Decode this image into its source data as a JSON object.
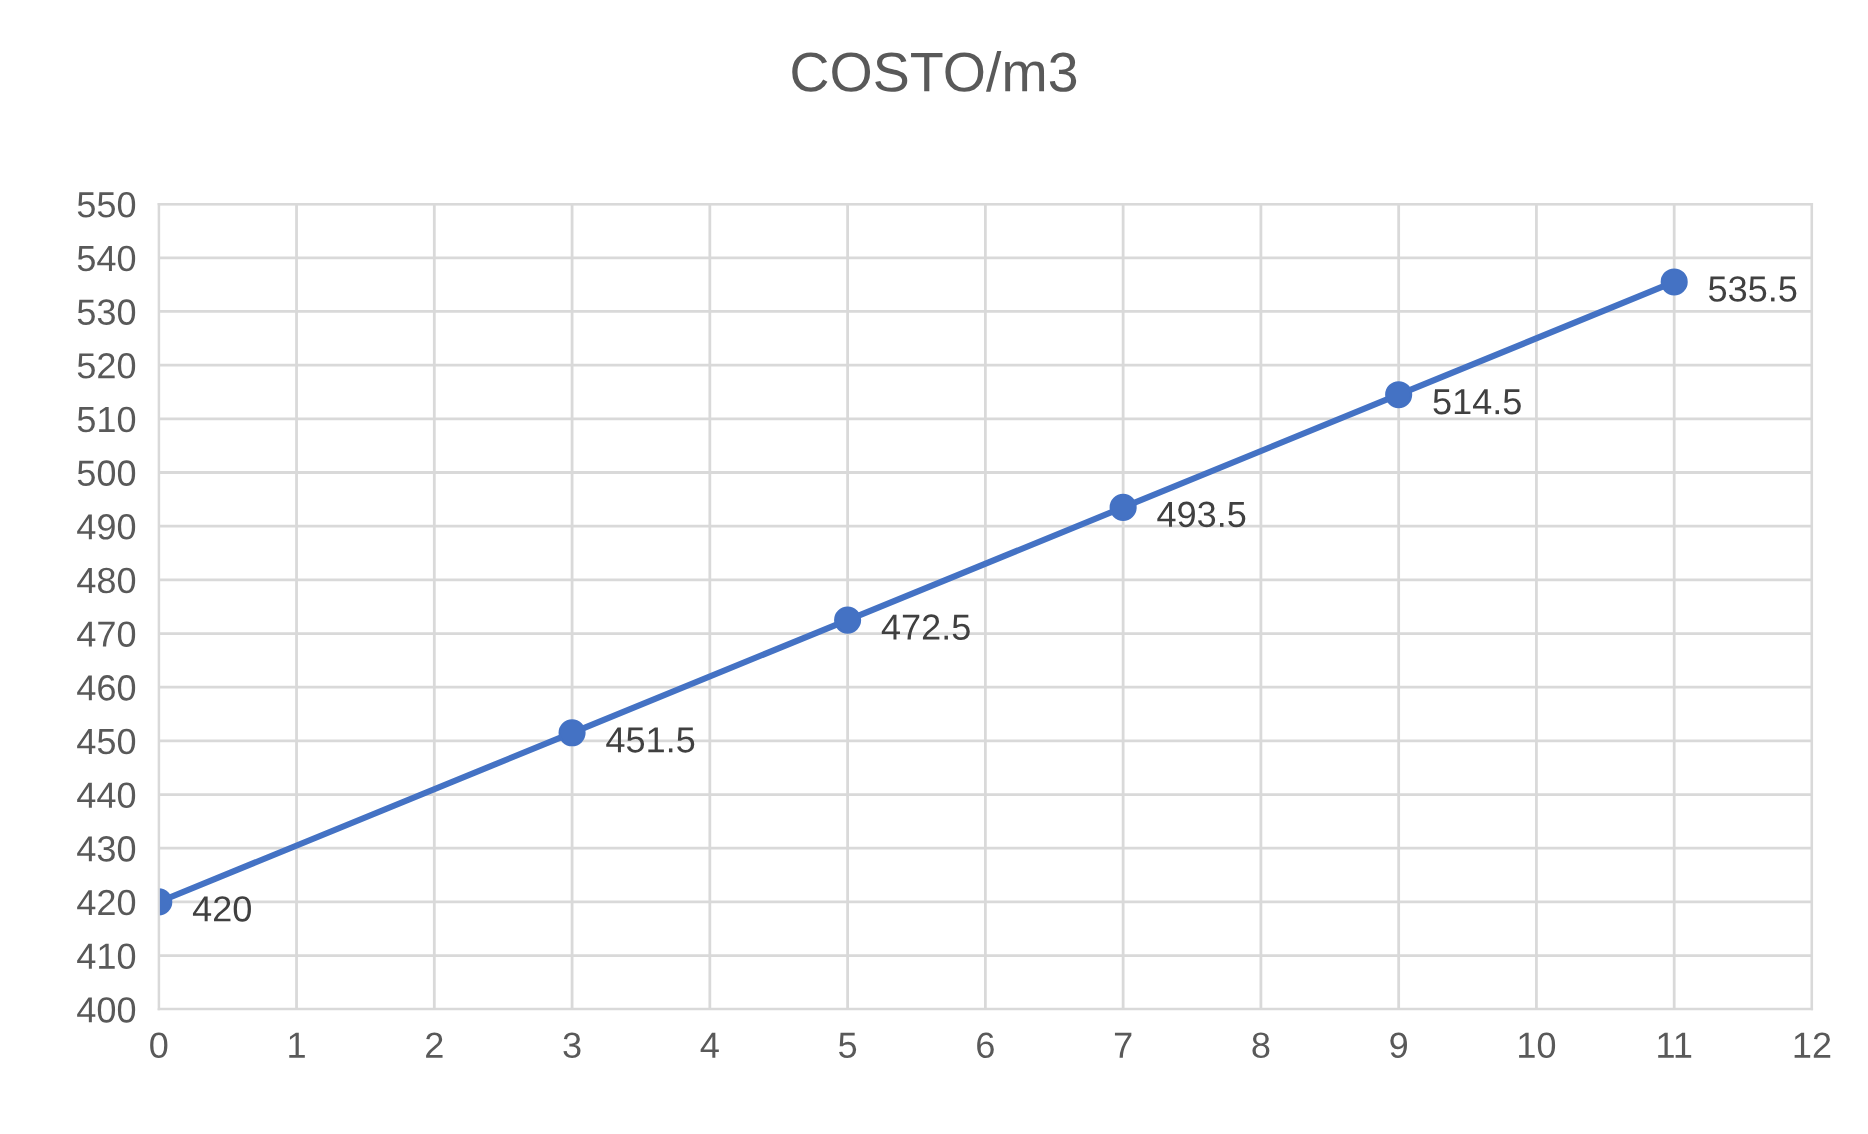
{
  "chart_data": {
    "type": "line",
    "title": "COSTO/m3",
    "x": [
      0,
      3,
      5,
      7,
      9,
      11
    ],
    "series": [
      {
        "color": "#4472c4",
        "values": [
          420,
          451.5,
          472.5,
          493.5,
          514.5,
          535.5
        ]
      }
    ],
    "xlim": [
      0,
      12
    ],
    "xticks": [
      0,
      1,
      2,
      3,
      4,
      5,
      6,
      7,
      8,
      9,
      10,
      11,
      12
    ],
    "ylim": [
      400,
      550
    ],
    "yticks": [
      400,
      410,
      420,
      430,
      440,
      450,
      460,
      470,
      480,
      490,
      500,
      510,
      520,
      530,
      540,
      550
    ],
    "grid": true,
    "marker": "circle",
    "line_style": "solid",
    "data_labels": true,
    "legend": false
  }
}
